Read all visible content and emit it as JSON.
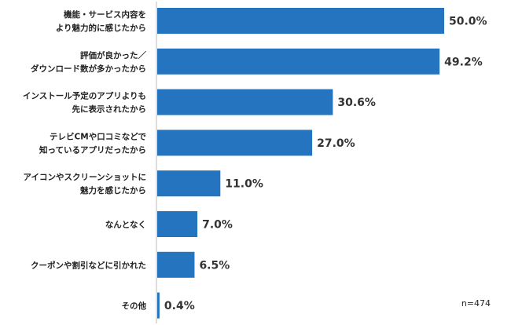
{
  "chart_data": {
    "type": "bar",
    "orientation": "horizontal",
    "categories": [
      [
        "機能・サービス内容を",
        "より魅力的に感じたから"
      ],
      [
        "評価が良かった／",
        "ダウンロード数が多かったから"
      ],
      [
        "インストール予定のアプリよりも",
        "先に表示されたから"
      ],
      [
        "テレビCMや口コミなどで",
        "知っているアプリだったから"
      ],
      [
        "アイコンやスクリーンショットに",
        "魅力を感じたから"
      ],
      [
        "なんとなく"
      ],
      [
        "クーポンや割引などに引かれた"
      ],
      [
        "その他"
      ]
    ],
    "values": [
      50.0,
      49.2,
      30.6,
      27.0,
      11.0,
      7.0,
      6.5,
      0.4
    ],
    "value_labels": [
      "50.0%",
      "49.2%",
      "30.6%",
      "27.0%",
      "11.0%",
      "7.0%",
      "6.5%",
      "0.4%"
    ],
    "xlim": [
      0,
      50
    ],
    "grid": false,
    "legend": "none",
    "bar_color": "#2474c0",
    "axis_color": "#bbbbbb"
  },
  "note": "n=474"
}
